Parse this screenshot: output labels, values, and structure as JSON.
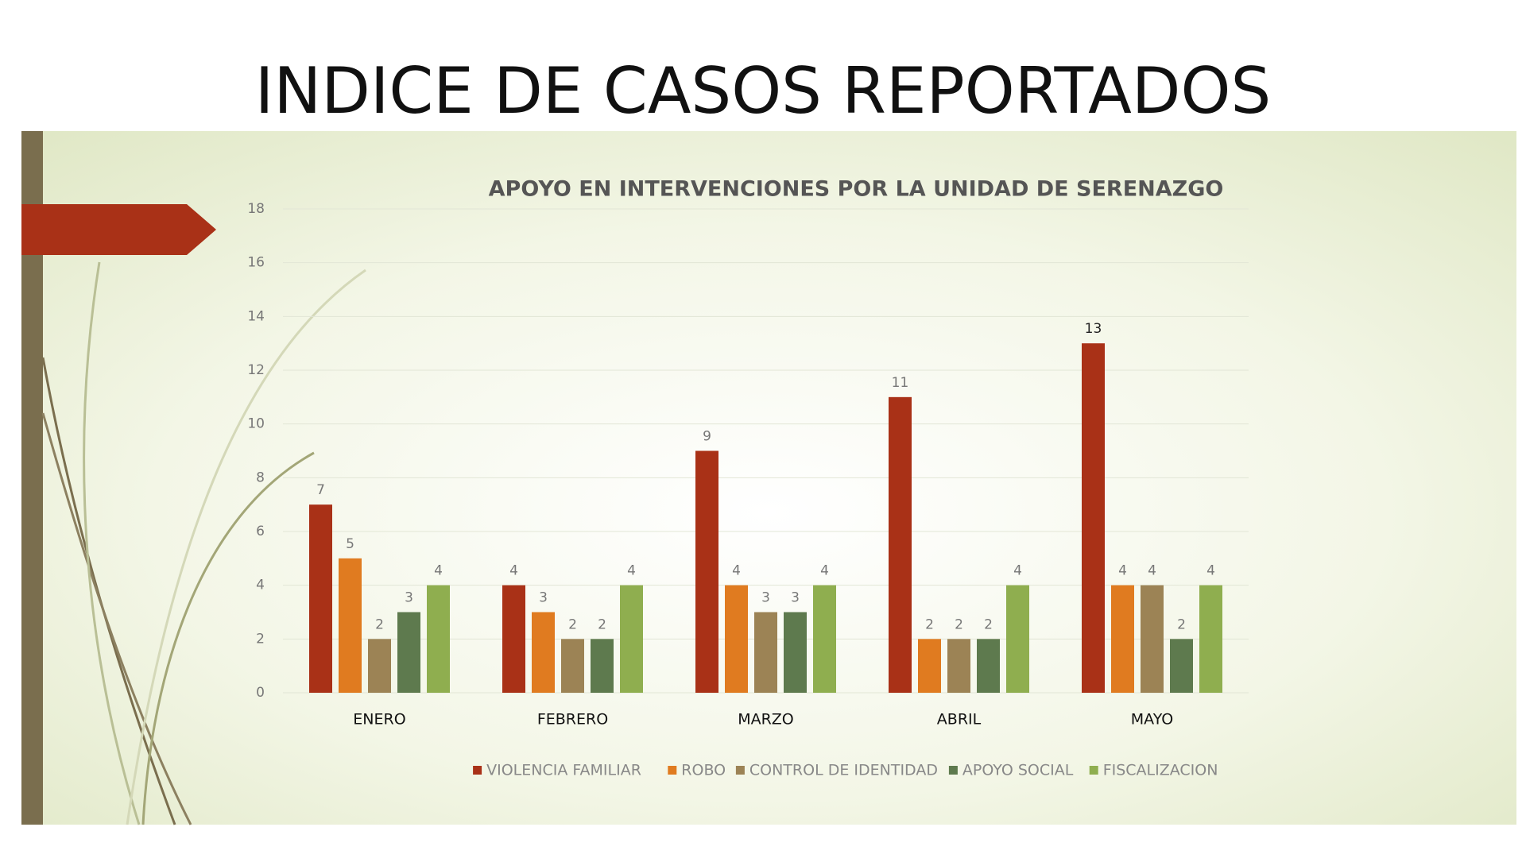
{
  "header": {
    "title": "INDICE DE CASOS REPORTADOS"
  },
  "chart_data": {
    "type": "bar",
    "title": "APOYO EN INTERVENCIONES POR LA UNIDAD DE SERENAZGO",
    "categories": [
      "ENERO",
      "FEBRERO",
      "MARZO",
      "ABRIL",
      "MAYO"
    ],
    "series": [
      {
        "name": "VIOLENCIA FAMILIAR",
        "color": "#a93117",
        "values": [
          7,
          4,
          9,
          11,
          13
        ]
      },
      {
        "name": "ROBO",
        "color": "#e07b20",
        "values": [
          5,
          3,
          4,
          2,
          4
        ]
      },
      {
        "name": "CONTROL DE IDENTIDAD",
        "color": "#9c8355",
        "values": [
          2,
          2,
          3,
          2,
          4
        ]
      },
      {
        "name": "APOYO SOCIAL",
        "color": "#5e7a4e",
        "values": [
          3,
          2,
          3,
          2,
          2
        ]
      },
      {
        "name": "FISCALIZACION",
        "color": "#8fae4f",
        "values": [
          4,
          4,
          4,
          4,
          4
        ]
      }
    ],
    "ylim": [
      0,
      18
    ],
    "yticks": [
      0,
      2,
      4,
      6,
      8,
      10,
      12,
      14,
      16,
      18
    ],
    "grid": true,
    "legend": "bottom",
    "data_labels": true
  }
}
